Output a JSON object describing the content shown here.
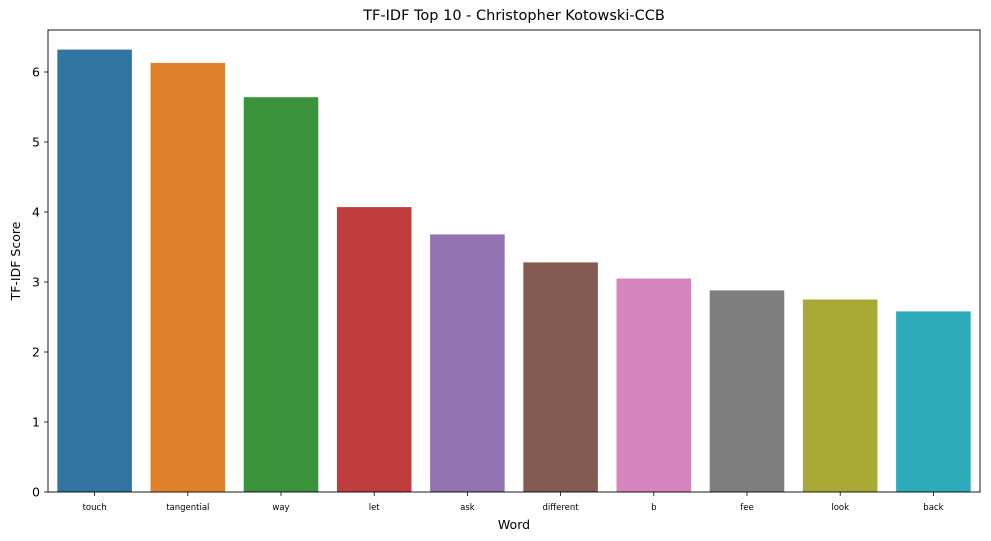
{
  "chart_data": {
    "type": "bar",
    "title": "TF-IDF Top 10 - Christopher Kotowski-CCB",
    "xlabel": "Word",
    "ylabel": "TF-IDF Score",
    "ylim": [
      0,
      6.6
    ],
    "yticks": [
      0,
      1,
      2,
      3,
      4,
      5,
      6
    ],
    "categories": [
      "touch",
      "tangential",
      "way",
      "let",
      "ask",
      "different",
      "b",
      "fee",
      "look",
      "back"
    ],
    "values": [
      6.32,
      6.13,
      5.64,
      4.07,
      3.68,
      3.28,
      3.05,
      2.88,
      2.75,
      2.58
    ],
    "colors": [
      "#3274a1",
      "#e1812c",
      "#3a923a",
      "#c03d3e",
      "#9372b2",
      "#845b53",
      "#d684bd",
      "#7f7f7f",
      "#a9aa35",
      "#2eabb8"
    ],
    "grid": false,
    "legend": "none"
  }
}
